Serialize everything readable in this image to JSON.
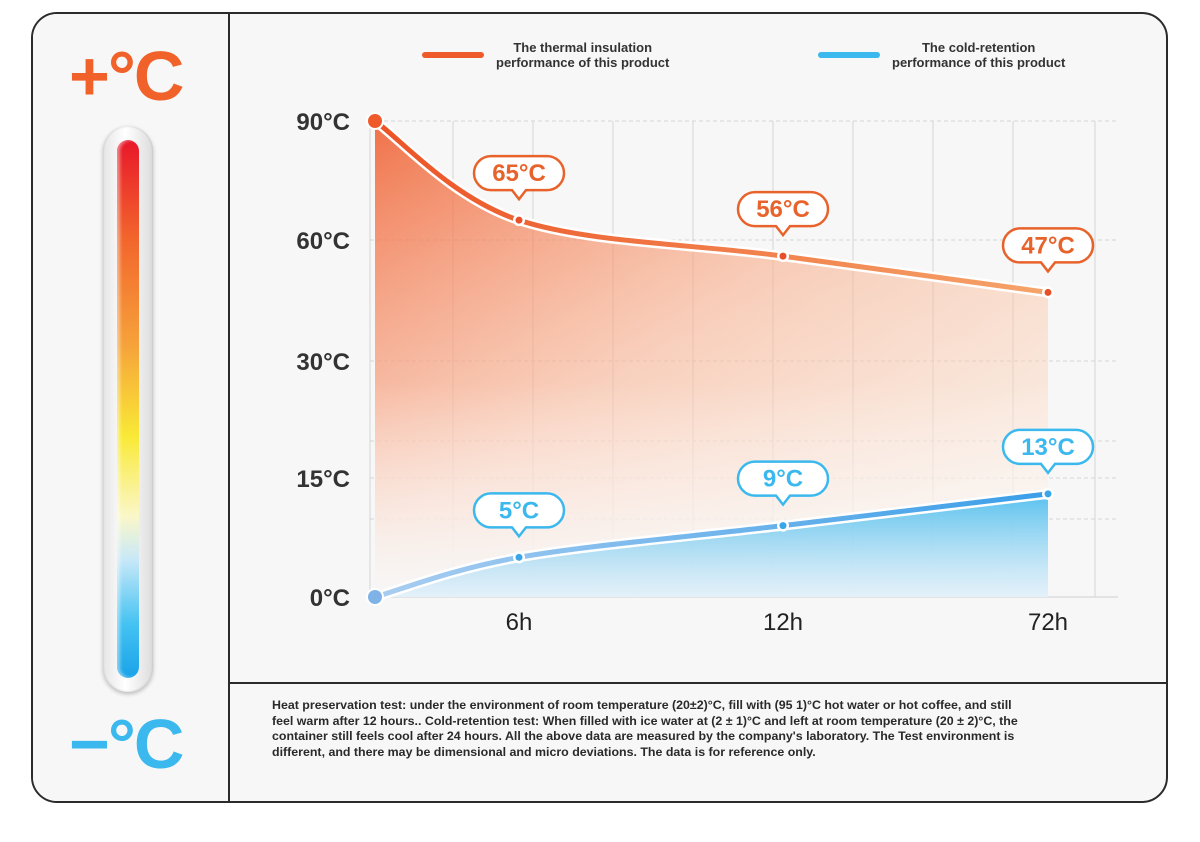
{
  "left": {
    "hot_label": "+°C",
    "cold_label": "−°C"
  },
  "legend": [
    {
      "label": "The thermal insulation\nperformance of this product",
      "color": "#ef5a2a"
    },
    {
      "label": "The cold-retention\nperformance of this product",
      "color": "#3bb8ee"
    }
  ],
  "note": "Heat preservation test: under the environment of room temperature (20±2)°C, fill with (95 1)°C hot water or hot coffee, and still feel warm after 12 hours.. Cold-retention test: When filled with ice water at (2 ± 1)°C and left at room temperature (20 ± 2)°C, the container still feels cool after 24 hours. All the above data are measured by the company's laboratory. The Test environment is different, and there may be dimensional and micro deviations. The data is for reference only.",
  "chart_data": {
    "type": "area",
    "categories": [
      "",
      "6h",
      "12h",
      "72h"
    ],
    "y_ticks": [
      0,
      15,
      30,
      60,
      90
    ],
    "y_tick_labels": [
      "0°C",
      "15°C",
      "30°C",
      "60°C",
      "90°C"
    ],
    "ylim": [
      0,
      90
    ],
    "grid": true,
    "legend_position": "top",
    "series": [
      {
        "name": "The thermal insulation performance of this product",
        "values": [
          90,
          65,
          56,
          47
        ],
        "labels": [
          "",
          "65°C",
          "56°C",
          "47°C"
        ],
        "color": "#ef5a2a"
      },
      {
        "name": "The cold-retention performance of this product",
        "values": [
          0,
          5,
          9,
          13
        ],
        "labels": [
          "",
          "5°C",
          "9°C",
          "13°C"
        ],
        "color": "#3bb8ee"
      }
    ]
  }
}
